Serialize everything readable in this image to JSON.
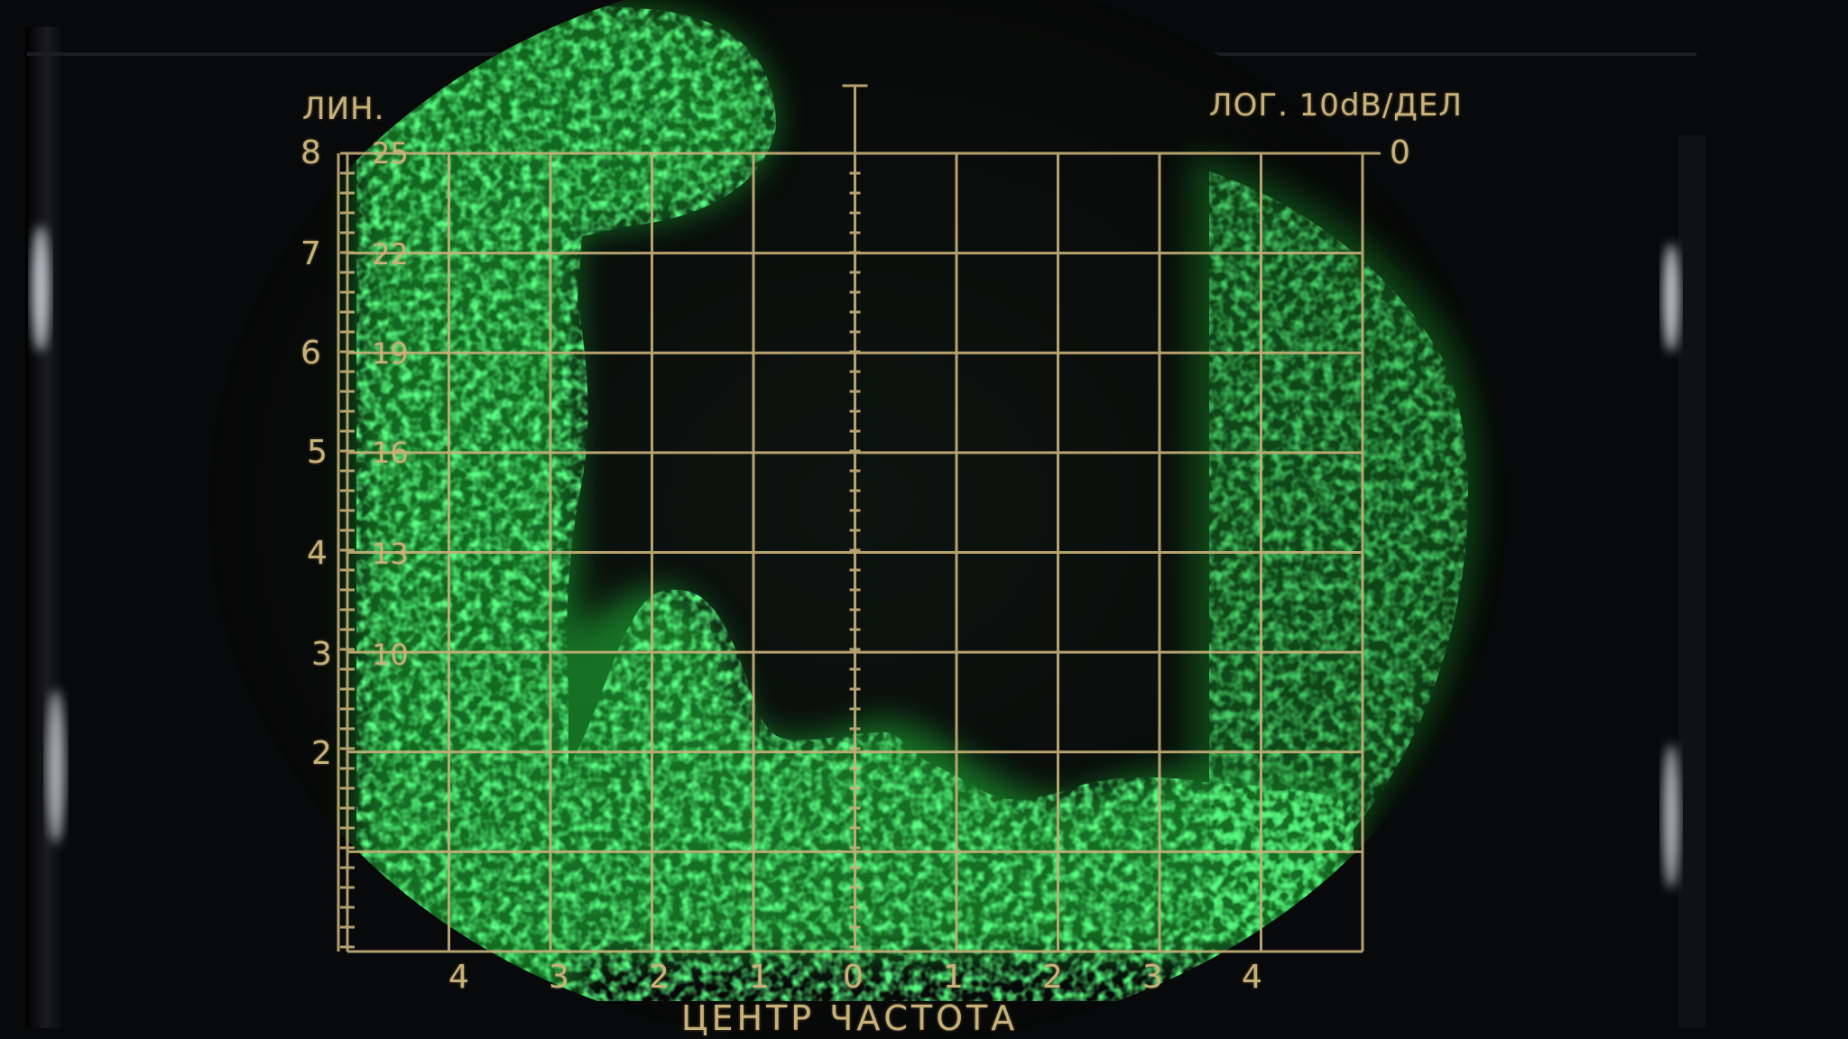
{
  "screen": {
    "top_left_label": "ЛИН.",
    "top_right_label": "ЛОГ. 10dB/ДЕЛ",
    "top_right_zero": "0",
    "bottom_label": "ЦЕНТР ЧАСТОТА",
    "lin_scale": [
      "8",
      "7",
      "6",
      "5",
      "4",
      "3",
      "2"
    ],
    "sub_scale": [
      "25",
      "22",
      "19",
      "16",
      "13",
      "10"
    ],
    "x_ticks": [
      "4",
      "3",
      "2",
      "1",
      "0",
      "1",
      "2",
      "3",
      "4"
    ]
  },
  "colors": {
    "background": "#0a0a0b",
    "graticule": "#c9b27a",
    "trace": "#39e34a",
    "bezel": "#141416"
  }
}
